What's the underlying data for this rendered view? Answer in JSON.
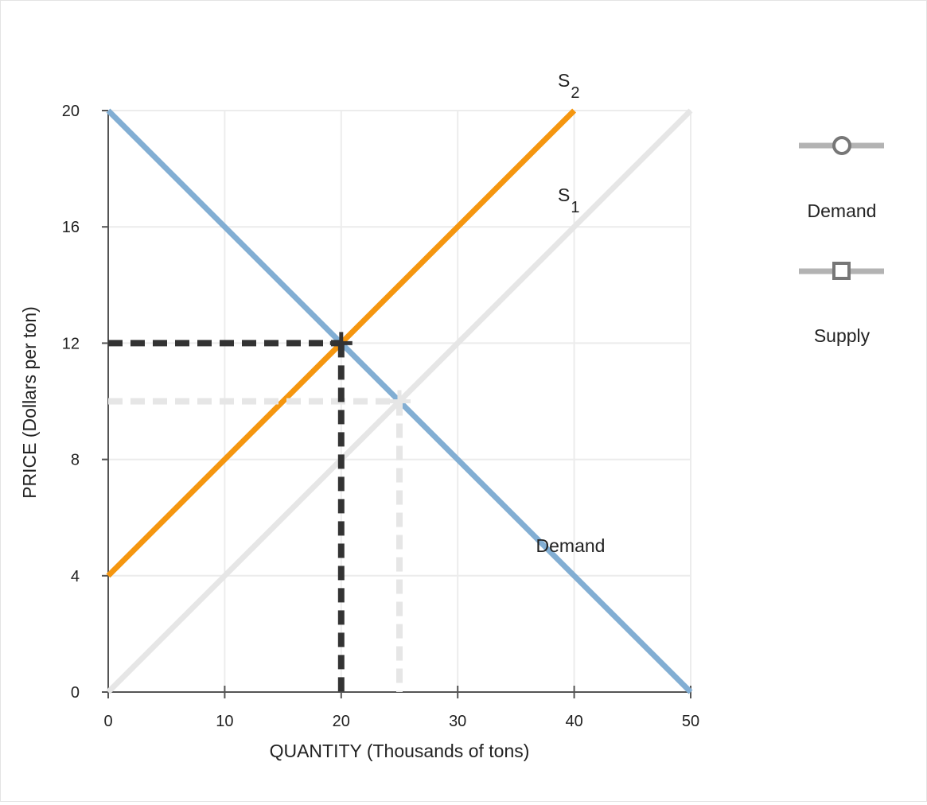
{
  "chart_data": {
    "type": "line",
    "xlabel": "QUANTITY (Thousands of tons)",
    "ylabel": "PRICE (Dollars per ton)",
    "xlim": [
      0,
      50
    ],
    "ylim": [
      0,
      20
    ],
    "x_ticks": [
      "0",
      "10",
      "20",
      "30",
      "40",
      "50"
    ],
    "y_ticks": [
      "0",
      "4",
      "8",
      "12",
      "16",
      "20"
    ],
    "grid": true,
    "series": [
      {
        "name": "Demand",
        "color": "#82aed3",
        "points": [
          [
            0,
            20
          ],
          [
            50,
            0
          ]
        ]
      },
      {
        "name": "S1",
        "color": "#e6e6e6",
        "points": [
          [
            0,
            0
          ],
          [
            50,
            20
          ]
        ]
      },
      {
        "name": "S2",
        "color": "#f5960f",
        "points": [
          [
            0,
            4
          ],
          [
            40,
            20
          ]
        ]
      }
    ],
    "equilibria": [
      {
        "x": 25,
        "y": 10,
        "color": "#e6e6e6"
      },
      {
        "x": 20,
        "y": 12,
        "color": "#333333"
      }
    ],
    "annotations": {
      "s2": {
        "main": "S",
        "sub": "2"
      },
      "s1": {
        "main": "S",
        "sub": "1"
      },
      "demand": "Demand"
    },
    "legend": {
      "position": "right",
      "items": [
        {
          "label": "Demand",
          "marker": "circle"
        },
        {
          "label": "Supply",
          "marker": "square"
        }
      ]
    }
  }
}
